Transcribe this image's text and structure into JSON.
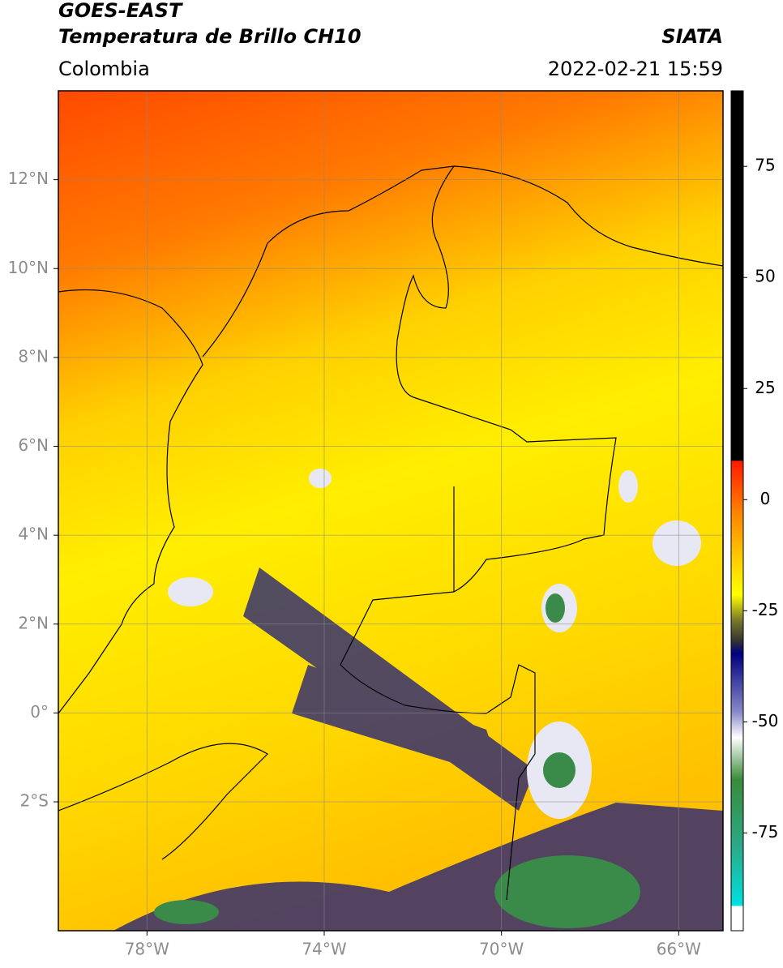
{
  "header": {
    "title": "GOES-EAST",
    "subtitle": "Temperatura de Brillo CH10",
    "region": "Colombia",
    "source": "SIATA",
    "timestamp": "2022-02-21 15:59"
  },
  "map": {
    "lonlim": [
      -80,
      -65
    ],
    "latlim": [
      -4.9,
      14
    ],
    "lon_ticks": [
      {
        "value": -78,
        "label": "78°W"
      },
      {
        "value": -74,
        "label": "74°W"
      },
      {
        "value": -70,
        "label": "70°W"
      },
      {
        "value": -66,
        "label": "66°W"
      }
    ],
    "lat_ticks": [
      {
        "value": 12,
        "label": "12°N"
      },
      {
        "value": 10,
        "label": "10°N"
      },
      {
        "value": 8,
        "label": "8°N"
      },
      {
        "value": 6,
        "label": "6°N"
      },
      {
        "value": 4,
        "label": "4°N"
      },
      {
        "value": 2,
        "label": "2°N"
      },
      {
        "value": 0,
        "label": "0°"
      },
      {
        "value": -2,
        "label": "2°S"
      }
    ],
    "grid": true
  },
  "colorbar": {
    "lim": [
      -97,
      92
    ],
    "ticks": [
      75,
      50,
      25,
      0,
      -25,
      -50,
      -75
    ]
  }
}
